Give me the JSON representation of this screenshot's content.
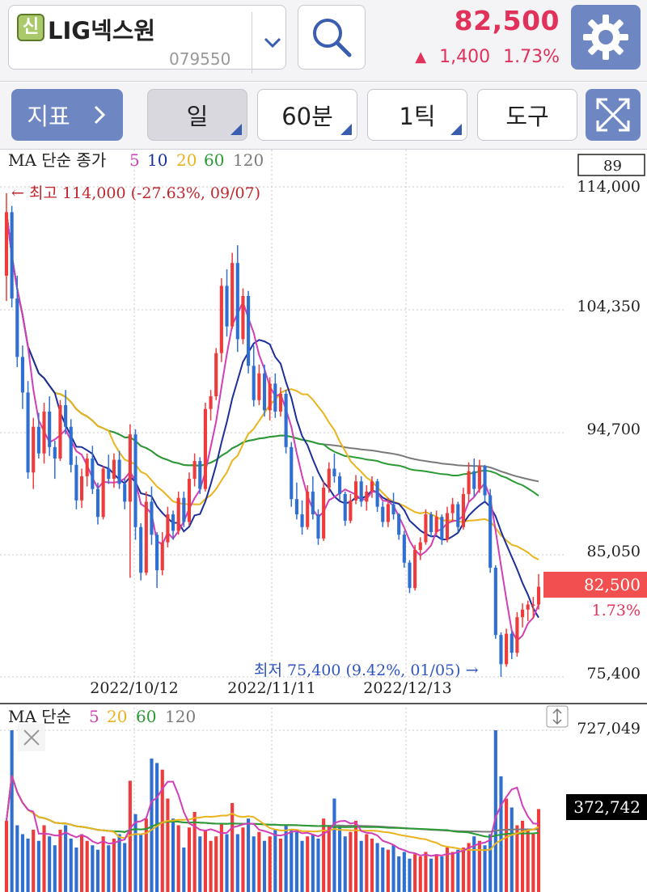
{
  "header": {
    "badge": "신",
    "stock_name": "LIG넥스원",
    "stock_code": "079550",
    "price": "82,500",
    "change_arrow": "▲",
    "change_amount": "1,400",
    "change_pct": "1.73%",
    "up_color": "#e0325a"
  },
  "toolbar": {
    "indicator_label": "지표",
    "period_day": "일",
    "period_minute": "60분",
    "tick": "1틱",
    "tools": "도구"
  },
  "price_panel": {
    "legend_title": "MA 단순 종가",
    "ma_periods": [
      "5",
      "10",
      "20",
      "60",
      "120"
    ],
    "top_box": "89",
    "y_ticks": [
      "114,000",
      "104,350",
      "94,700",
      "85,050",
      "75,400"
    ],
    "current_price_label": "82,500",
    "current_pct_label": "1.73%",
    "high_annotation": "← 최고 114,000 (-27.63%, 09/07)",
    "low_annotation": "최저 75,400 (9.42%, 01/05) →",
    "x_dates": [
      "2022/10/12",
      "2022/11/11",
      "2022/12/13"
    ]
  },
  "volume_panel": {
    "legend_title": "MA 단순",
    "ma_periods": [
      "5",
      "20",
      "60",
      "120"
    ],
    "y_top": "727,049",
    "current_volume": "372,742"
  },
  "colors": {
    "up": "#ee3b3b",
    "down": "#2f6fd1",
    "ma5": "#d13fb7",
    "ma10": "#1c2f9a",
    "ma20": "#e9b41d",
    "ma60": "#2a9b34",
    "ma120": "#7a7a7a"
  },
  "chart_data": {
    "type": "candlestick",
    "y_range": [
      75400,
      114000
    ],
    "y_ticks": [
      114000,
      104350,
      94700,
      85050,
      75400
    ],
    "high": {
      "value": 114000,
      "pct": "-27.63%",
      "date": "09/07"
    },
    "low": {
      "value": 75400,
      "pct": "9.42%",
      "date": "01/05"
    },
    "close": 82500,
    "candles": [
      [
        107000,
        113500,
        105000,
        112000
      ],
      [
        112000,
        112500,
        104500,
        105200
      ],
      [
        105200,
        107000,
        99800,
        100600
      ],
      [
        100600,
        101500,
        96500,
        97800
      ],
      [
        97800,
        98700,
        91000,
        91500
      ],
      [
        91500,
        95800,
        90200,
        95100
      ],
      [
        95100,
        96200,
        92600,
        93000
      ],
      [
        93000,
        97000,
        92200,
        96300
      ],
      [
        96300,
        97500,
        92800,
        93500
      ],
      [
        93500,
        94000,
        91000,
        92600
      ],
      [
        92600,
        97200,
        92400,
        96800
      ],
      [
        96800,
        98000,
        94500,
        95100
      ],
      [
        95100,
        95700,
        91500,
        92100
      ],
      [
        92100,
        92800,
        88600,
        89300
      ],
      [
        89300,
        91800,
        88700,
        91200
      ],
      [
        91200,
        93000,
        90400,
        92600
      ],
      [
        92600,
        93600,
        89800,
        90200
      ],
      [
        90200,
        90700,
        87400,
        88000
      ],
      [
        88000,
        92000,
        87800,
        91800
      ],
      [
        91800,
        92900,
        90600,
        91000
      ],
      [
        91000,
        93000,
        90300,
        92500
      ],
      [
        92500,
        93200,
        90200,
        90600
      ],
      [
        90600,
        91000,
        88600,
        89200
      ],
      [
        89200,
        95300,
        83200,
        94500
      ],
      [
        94500,
        94900,
        86200,
        87200
      ],
      [
        87200,
        87500,
        83000,
        83600
      ],
      [
        83600,
        90000,
        83400,
        89200
      ],
      [
        89200,
        90400,
        85800,
        86600
      ],
      [
        86600,
        86800,
        82400,
        83800
      ],
      [
        83800,
        86800,
        83400,
        86000
      ],
      [
        86000,
        88800,
        85600,
        88200
      ],
      [
        88200,
        88500,
        86200,
        86900
      ],
      [
        86900,
        90000,
        86600,
        89500
      ],
      [
        89500,
        90000,
        87200,
        87600
      ],
      [
        87600,
        91500,
        87300,
        91000
      ],
      [
        91000,
        93000,
        90400,
        92400
      ],
      [
        92400,
        92700,
        89800,
        90200
      ],
      [
        90200,
        97000,
        90000,
        96500
      ],
      [
        96500,
        98000,
        95600,
        97500
      ],
      [
        97500,
        101300,
        97200,
        100900
      ],
      [
        100900,
        106800,
        100200,
        106200
      ],
      [
        106200,
        107500,
        102200,
        103000
      ],
      [
        103000,
        108800,
        102800,
        108000
      ],
      [
        108000,
        109400,
        101000,
        102000
      ],
      [
        102000,
        106000,
        101600,
        105400
      ],
      [
        105400,
        105800,
        99300,
        99900
      ],
      [
        99900,
        101500,
        96700,
        97200
      ],
      [
        97200,
        100000,
        96800,
        99300
      ],
      [
        99300,
        100000,
        95900,
        96400
      ],
      [
        96400,
        99000,
        95600,
        98500
      ],
      [
        98500,
        99300,
        95800,
        96300
      ],
      [
        96300,
        98200,
        95900,
        97700
      ],
      [
        97700,
        98000,
        93000,
        93500
      ],
      [
        93500,
        93900,
        88800,
        89400
      ],
      [
        89400,
        90700,
        87800,
        88200
      ],
      [
        88200,
        89300,
        86600,
        87200
      ],
      [
        87200,
        90500,
        87000,
        90000
      ],
      [
        90000,
        91200,
        87800,
        88200
      ],
      [
        88200,
        88600,
        85800,
        86300
      ],
      [
        86300,
        90800,
        86100,
        90300
      ],
      [
        90300,
        92300,
        89900,
        91800
      ],
      [
        91800,
        93000,
        90700,
        91200
      ],
      [
        91200,
        91500,
        89300,
        89800
      ],
      [
        89800,
        90000,
        87300,
        87700
      ],
      [
        87700,
        89800,
        87500,
        89300
      ],
      [
        89300,
        91300,
        89000,
        90800
      ],
      [
        90800,
        91200,
        88800,
        89200
      ],
      [
        89200,
        90500,
        88500,
        90000
      ],
      [
        90000,
        91200,
        89500,
        90800
      ],
      [
        90800,
        91000,
        88400,
        88800
      ],
      [
        88800,
        89200,
        87200,
        87600
      ],
      [
        87600,
        89500,
        87200,
        89000
      ],
      [
        89000,
        89900,
        87800,
        88200
      ],
      [
        88200,
        88300,
        86200,
        86600
      ],
      [
        86600,
        86900,
        84000,
        84400
      ],
      [
        84400,
        84600,
        82000,
        82400
      ],
      [
        82400,
        85800,
        82200,
        85400
      ],
      [
        85400,
        86400,
        84600,
        86000
      ],
      [
        86000,
        88600,
        85800,
        88200
      ],
      [
        88200,
        88400,
        86400,
        86800
      ],
      [
        86800,
        88500,
        86600,
        88000
      ],
      [
        88000,
        88200,
        85800,
        86200
      ],
      [
        86200,
        88800,
        86000,
        88300
      ],
      [
        88300,
        89500,
        87600,
        89000
      ],
      [
        89000,
        89200,
        86800,
        87200
      ],
      [
        87200,
        90300,
        87000,
        89800
      ],
      [
        89800,
        92300,
        89200,
        91600
      ],
      [
        91600,
        92600,
        89600,
        90200
      ],
      [
        90200,
        92500,
        89900,
        92000
      ],
      [
        92000,
        92100,
        89200,
        89700
      ],
      [
        89700,
        90200,
        83600,
        84000
      ],
      [
        84000,
        84200,
        78400,
        78700
      ],
      [
        78700,
        78900,
        75400,
        76400
      ],
      [
        76400,
        79200,
        76200,
        78800
      ],
      [
        78800,
        79000,
        76800,
        77300
      ],
      [
        77300,
        80500,
        77000,
        80100
      ],
      [
        80100,
        81200,
        79300,
        80700
      ],
      [
        80700,
        81400,
        79800,
        81100
      ],
      [
        81100,
        81700,
        80000,
        81100
      ],
      [
        81100,
        83500,
        80700,
        82500
      ]
    ],
    "volumes": [
      320000,
      727049,
      300000,
      260000,
      240000,
      280000,
      230000,
      300000,
      250000,
      210000,
      280000,
      300000,
      240000,
      200000,
      260000,
      230000,
      210000,
      190000,
      250000,
      210000,
      240000,
      260000,
      220000,
      500000,
      350000,
      260000,
      330000,
      600000,
      580000,
      550000,
      420000,
      330000,
      300000,
      200000,
      290000,
      360000,
      250000,
      280000,
      230000,
      250000,
      310000,
      260000,
      400000,
      260000,
      290000,
      330000,
      250000,
      270000,
      230000,
      250000,
      280000,
      240000,
      300000,
      280000,
      270000,
      230000,
      250000,
      260000,
      240000,
      330000,
      300000,
      420000,
      300000,
      250000,
      270000,
      320000,
      230000,
      260000,
      240000,
      220000,
      200000,
      190000,
      210000,
      160000,
      180000,
      150000,
      170000,
      160000,
      180000,
      150000,
      170000,
      160000,
      200000,
      180000,
      190000,
      200000,
      220000,
      250000,
      230000,
      210000,
      260000,
      727049,
      520000,
      420000,
      380000,
      300000,
      320000,
      280000,
      260000,
      372742
    ]
  }
}
